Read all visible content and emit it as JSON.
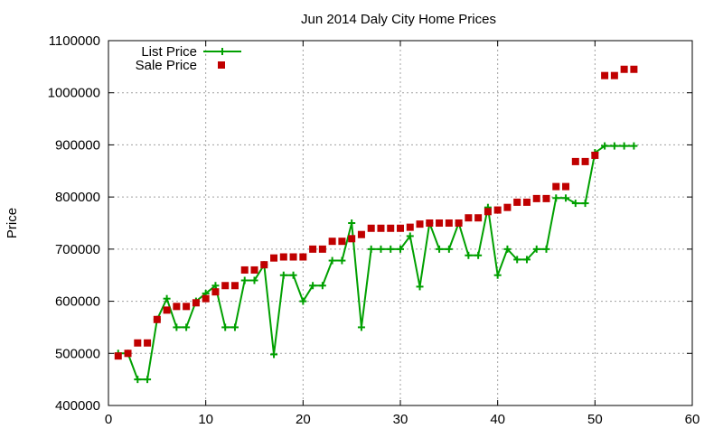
{
  "chart_data": {
    "type": "line",
    "title": "Jun 2014 Daly City Home Prices",
    "xlabel": "",
    "ylabel": "Price",
    "xlim": [
      0,
      60
    ],
    "ylim": [
      400000,
      1100000
    ],
    "xticks": [
      0,
      10,
      20,
      30,
      40,
      50,
      60
    ],
    "yticks": [
      400000,
      500000,
      600000,
      700000,
      800000,
      900000,
      1000000,
      1100000
    ],
    "grid": true,
    "legend_position": "top-left",
    "series": [
      {
        "name": "List Price",
        "style": "line-with-plus-markers",
        "color": "#00a000",
        "x": [
          1,
          2,
          3,
          4,
          5,
          6,
          7,
          8,
          9,
          10,
          11,
          12,
          13,
          14,
          15,
          16,
          17,
          18,
          19,
          20,
          21,
          22,
          23,
          24,
          25,
          26,
          27,
          28,
          29,
          30,
          31,
          32,
          33,
          34,
          35,
          36,
          37,
          38,
          39,
          40,
          41,
          42,
          43,
          44,
          45,
          46,
          47,
          48,
          49,
          50,
          51,
          52,
          53,
          54
        ],
        "values": [
          500000,
          500000,
          450000,
          450000,
          565000,
          605000,
          550000,
          550000,
          600000,
          615000,
          630000,
          550000,
          550000,
          640000,
          640000,
          670000,
          498000,
          650000,
          650000,
          600000,
          630000,
          630000,
          678000,
          678000,
          750000,
          550000,
          700000,
          700000,
          700000,
          700000,
          725000,
          628000,
          750000,
          700000,
          700000,
          750000,
          688000,
          688000,
          780000,
          650000,
          700000,
          680000,
          680000,
          700000,
          700000,
          798000,
          798000,
          788000,
          788000,
          885000,
          898000,
          898000,
          898000,
          898000
        ]
      },
      {
        "name": "Sale Price",
        "style": "square-markers",
        "color": "#c00000",
        "x": [
          1,
          2,
          3,
          4,
          5,
          6,
          7,
          8,
          9,
          10,
          11,
          12,
          13,
          14,
          15,
          16,
          17,
          18,
          19,
          20,
          21,
          22,
          23,
          24,
          25,
          26,
          27,
          28,
          29,
          30,
          31,
          32,
          33,
          34,
          35,
          36,
          37,
          38,
          39,
          40,
          41,
          42,
          43,
          44,
          45,
          46,
          47,
          48,
          49,
          50,
          51,
          52,
          53,
          54
        ],
        "values": [
          495000,
          500000,
          520000,
          520000,
          565000,
          583000,
          590000,
          590000,
          597000,
          605000,
          618000,
          630000,
          630000,
          660000,
          660000,
          670000,
          683000,
          685000,
          685000,
          685000,
          700000,
          700000,
          715000,
          715000,
          720000,
          728000,
          740000,
          740000,
          740000,
          740000,
          742000,
          748000,
          750000,
          750000,
          750000,
          750000,
          760000,
          760000,
          772000,
          775000,
          780000,
          790000,
          790000,
          797000,
          797000,
          820000,
          820000,
          868000,
          868000,
          880000,
          1033000,
          1033000,
          1045000,
          1045000
        ]
      }
    ]
  }
}
